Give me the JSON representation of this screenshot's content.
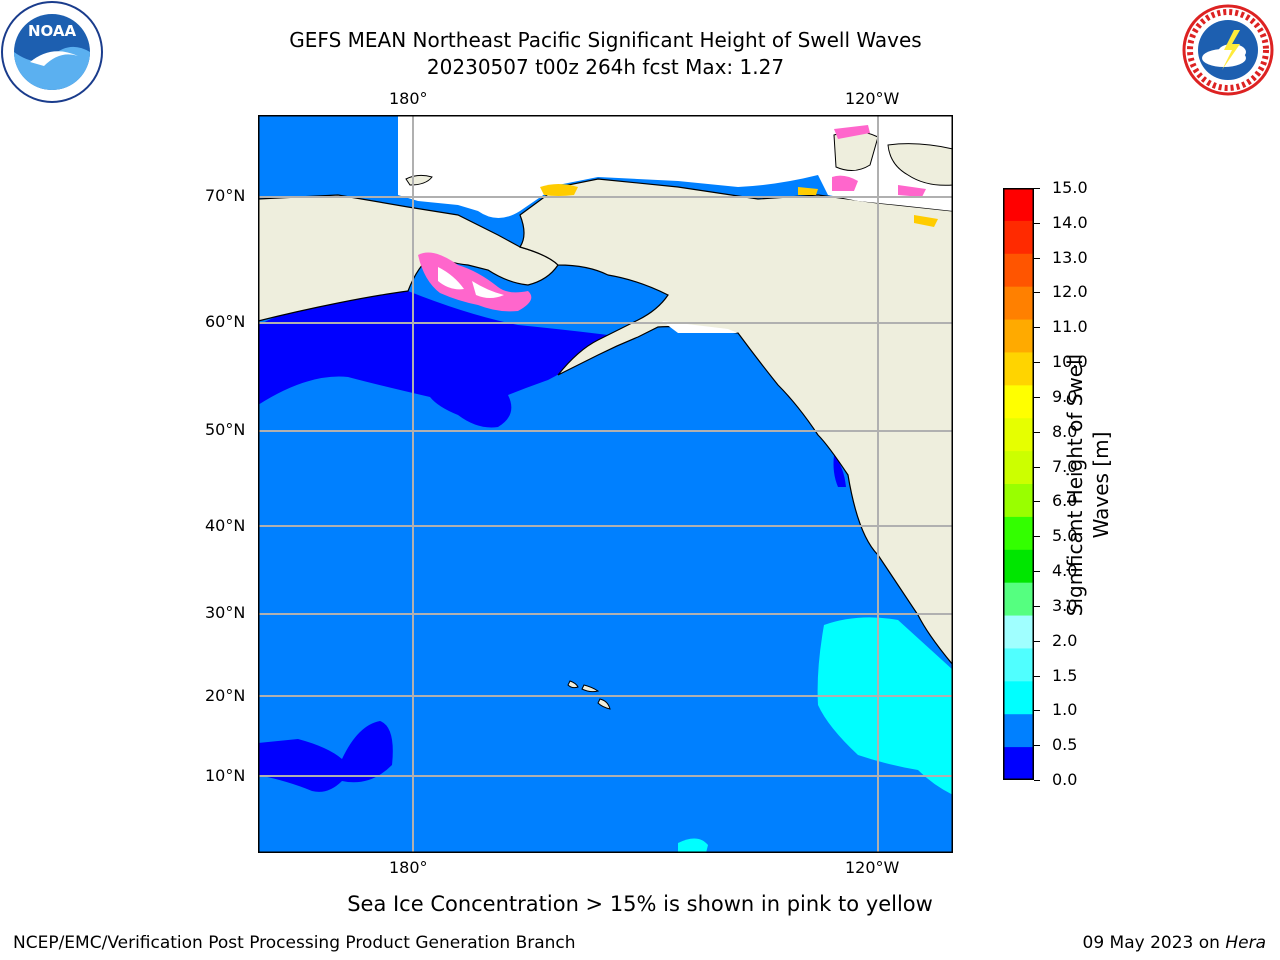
{
  "title": {
    "line1": "GEFS MEAN Northeast Pacific Significant Height of Swell Waves",
    "line2": "20230507 t00z 264h fcst   Max: 1.27"
  },
  "logos": {
    "left": {
      "icon": "noaa-logo",
      "text": "NOAA"
    },
    "right": {
      "icon": "nws-logo",
      "text": "NATIONAL WEATHER SERVICE"
    }
  },
  "axes": {
    "top_lon": [
      "180°",
      "120°W"
    ],
    "bottom_lon": [
      "180°",
      "120°W"
    ],
    "lat": [
      "70°N",
      "60°N",
      "50°N",
      "40°N",
      "30°N",
      "20°N",
      "10°N"
    ]
  },
  "colorbar": {
    "label_line1": "Significant Height of Swell",
    "label_line2": "Waves [m]",
    "ticks": [
      "15.0",
      "14.0",
      "13.0",
      "12.0",
      "11.0",
      "10.0",
      "9.0",
      "8.0",
      "7.0",
      "6.0",
      "5.0",
      "4.0",
      "3.0",
      "2.0",
      "1.5",
      "1.0",
      "0.5",
      "0.0"
    ],
    "colors": [
      "#ff0000",
      "#ff2a00",
      "#ff5500",
      "#ff8000",
      "#ffaa00",
      "#ffd400",
      "#ffff00",
      "#e6ff00",
      "#ccff00",
      "#99ff00",
      "#33ff00",
      "#00e600",
      "#55ff80",
      "#a0ffff",
      "#50ffff",
      "#00ffff",
      "#0080ff",
      "#0000ff"
    ]
  },
  "colors": {
    "ocean": "#0080ff",
    "low_swell": "#0000ff",
    "mid_swell": "#00ffff",
    "land": "#eeeedd",
    "ice_pink": "#ff66cc",
    "ice_yellow": "#ffcc00",
    "grid": "#b0b0b0"
  },
  "note": "Sea Ice Concentration > 15% is shown in pink to yellow",
  "footer": {
    "left": "NCEP/EMC/Verification Post Processing Product Generation Branch",
    "right_prefix": "09 May 2023 on ",
    "right_host": "Hera"
  }
}
